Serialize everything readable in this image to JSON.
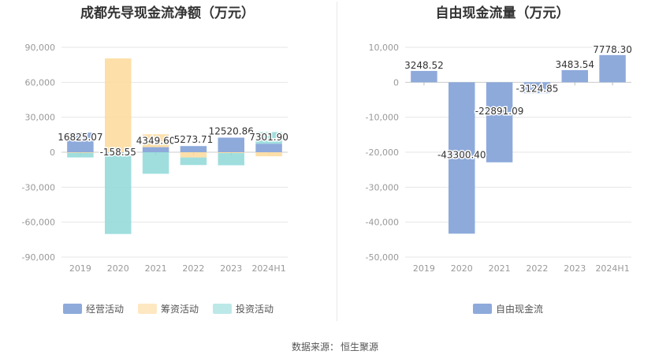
{
  "chart_data": [
    {
      "type": "bar",
      "stacked": true,
      "title": "成都先导现金流净额（万元）",
      "categories": [
        "2019",
        "2020",
        "2021",
        "2022",
        "2023",
        "2024H1"
      ],
      "series": [
        {
          "name": "经营活动",
          "color": "#8eaadb",
          "values": [
            16825.07,
            -158.55,
            4349.6,
            5273.71,
            12520.86,
            7301.9
          ]
        },
        {
          "name": "筹资活动",
          "color": "#fdd99a",
          "values": [
            -500,
            80500,
            11000,
            -4500,
            -700,
            -3500
          ]
        },
        {
          "name": "投资活动",
          "color": "#8fd8d8",
          "values": [
            -4000,
            -70000,
            -18500,
            -6500,
            -10500,
            10000
          ]
        }
      ],
      "data_labels": [
        "16825.07",
        "-158.55",
        "4349.60",
        "5273.71",
        "12520.86",
        "7301.90"
      ],
      "yticks": [
        "90,000",
        "60,000",
        "30,000",
        "0",
        "-30,000",
        "-60,000",
        "-90,000"
      ],
      "ylim": [
        -90000,
        90000
      ],
      "grid": true,
      "legend": "bottom"
    },
    {
      "type": "bar",
      "title": "自由现金流量（万元）",
      "categories": [
        "2019",
        "2020",
        "2021",
        "2022",
        "2023",
        "2024H1"
      ],
      "series": [
        {
          "name": "自由现金流",
          "color": "#8eaadb",
          "values": [
            3248.52,
            -43300.4,
            -22891.09,
            -3124.85,
            3483.54,
            7778.3
          ]
        }
      ],
      "data_labels": [
        "3248.52",
        "-43300.40",
        "-22891.09",
        "-3124.85",
        "3483.54",
        "7778.30"
      ],
      "yticks": [
        "10,000",
        "0",
        "-10,000",
        "-20,000",
        "-30,000",
        "-40,000",
        "-50,000"
      ],
      "ylim": [
        -50000,
        10000
      ],
      "grid": true,
      "legend": "bottom"
    }
  ],
  "footer": {
    "label": "数据来源：",
    "source": "恒生聚源"
  }
}
